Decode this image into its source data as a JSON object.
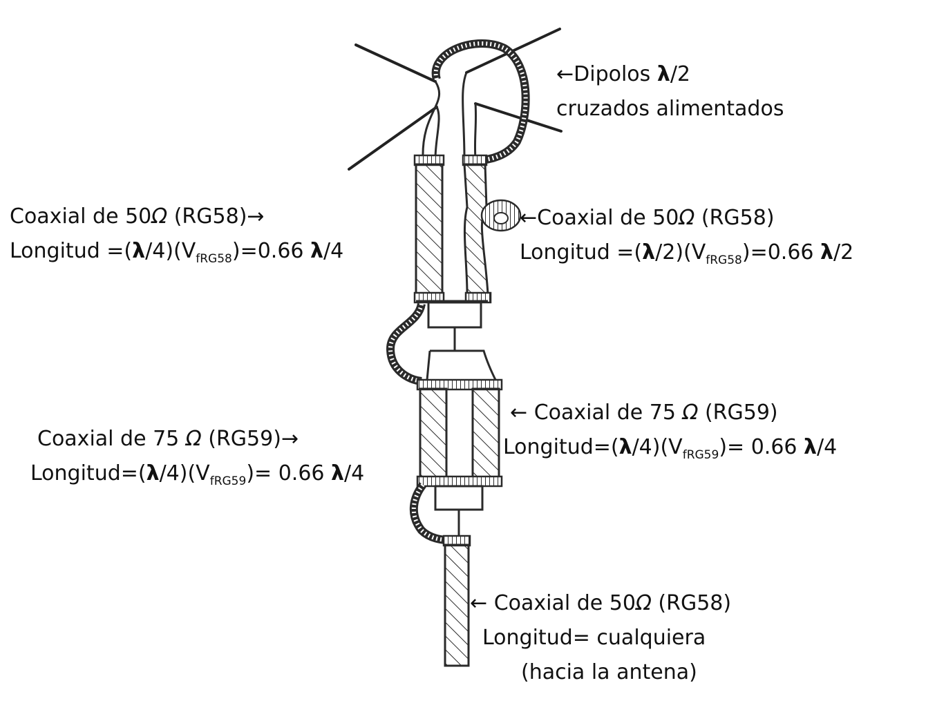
{
  "labels": {
    "dipoles": {
      "line1_arrow": "←",
      "line1_text": "Dipolos ",
      "line1_lambda": "λ",
      "line1_tail": "/2",
      "line2": "cruzados alimentados"
    },
    "left_rg58": {
      "name_pre": "Coaxial de 50",
      "ohm": "Ω",
      "name_post": " (RG58)",
      "arrow": "→",
      "len_a": "Longitud =(",
      "len_lambda1": "λ",
      "len_b": "/4)(V",
      "len_sub": "fRG58",
      "len_c": ")=0.66 ",
      "len_lambda2": "λ",
      "len_d": "/4"
    },
    "right_rg58": {
      "arrow": "←",
      "name_pre": "Coaxial de 50",
      "ohm": "Ω",
      "name_post": " (RG58)",
      "len_a": "Longitud =(",
      "len_lambda1": "λ",
      "len_b": "/2)(V",
      "len_sub": "fRG58",
      "len_c": ")=0.66 ",
      "len_lambda2": "λ",
      "len_d": "/2"
    },
    "right_rg59": {
      "arrow": "← ",
      "name_pre": "Coaxial de 75 ",
      "ohm": "Ω",
      "name_post": " (RG59)",
      "len_a": "Longitud=(",
      "len_lambda1": "λ",
      "len_b": "/4)(V",
      "len_sub": "fRG59",
      "len_c": ")= 0.66 ",
      "len_lambda2": "λ",
      "len_d": "/4"
    },
    "left_rg59": {
      "name_pre": "Coaxial de 75 ",
      "ohm": "Ω",
      "name_post": " (RG59)",
      "arrow": "→",
      "len_a": "Longitud=(",
      "len_lambda1": "λ",
      "len_b": "/4)(V",
      "len_sub": "fRG59",
      "len_c": ")= 0.66 ",
      "len_lambda2": "λ",
      "len_d": "/4"
    },
    "feed_rg58": {
      "arrow": "← ",
      "name_pre": "Coaxial de 50",
      "ohm": "Ω",
      "name_post": " (RG58)",
      "line2": "Longitud= cualquiera",
      "line3": "(hacia la antena)"
    }
  },
  "colors": {
    "ink": "#2a2a2a",
    "text": "#111111",
    "background": "#ffffff"
  }
}
